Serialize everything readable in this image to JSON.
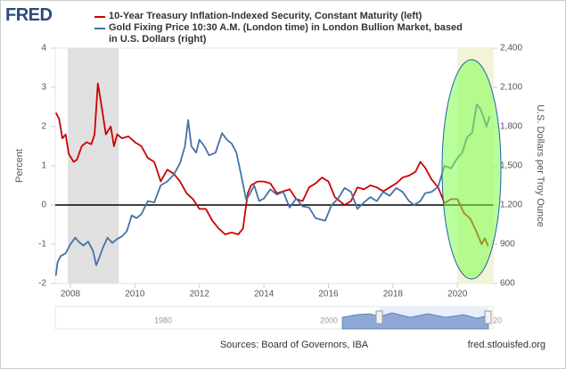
{
  "chart_data": {
    "type": "line",
    "logo": "FRED",
    "ylabel": "Percent",
    "y2label": "U.S. Dollars per Troy Ounce",
    "source": "Sources: Board of Governors, IBA",
    "url": "fred.stlouisfed.org",
    "xlim": [
      2007.53,
      2021.1
    ],
    "xticks": [
      2008,
      2010,
      2012,
      2014,
      2016,
      2018,
      2020
    ],
    "ylim": [
      -2,
      4
    ],
    "yticks": [
      -2,
      -1,
      0,
      1,
      2,
      3,
      4
    ],
    "y2lim": [
      600,
      2400
    ],
    "y2ticks": [
      {
        "value": 600,
        "label": "600"
      },
      {
        "value": 900,
        "label": "900"
      },
      {
        "value": 1200,
        "label": "1,200"
      },
      {
        "value": 1500,
        "label": "1,500"
      },
      {
        "value": 1800,
        "label": "1,800"
      },
      {
        "value": 2100,
        "label": "2,100"
      },
      {
        "value": 2400,
        "label": "2,400"
      }
    ],
    "recessions": [
      [
        2007.92,
        2009.5
      ],
      [
        2020.0,
        2021.1
      ]
    ],
    "navigator_labels": [
      "1980",
      "2000",
      "20"
    ],
    "series": [
      {
        "name": "10-Year Treasury Inflation-Indexed Security, Constant Maturity (left)",
        "color": "#cc0000",
        "x": [
          2007.55,
          2007.65,
          2007.75,
          2007.85,
          2007.95,
          2008.1,
          2008.2,
          2008.35,
          2008.5,
          2008.65,
          2008.75,
          2008.85,
          2008.95,
          2009.1,
          2009.25,
          2009.35,
          2009.45,
          2009.6,
          2009.8,
          2010.0,
          2010.2,
          2010.4,
          2010.6,
          2010.8,
          2011.0,
          2011.2,
          2011.4,
          2011.6,
          2011.8,
          2012.0,
          2012.2,
          2012.4,
          2012.6,
          2012.8,
          2013.0,
          2013.2,
          2013.35,
          2013.5,
          2013.6,
          2013.8,
          2014.0,
          2014.2,
          2014.4,
          2014.6,
          2014.8,
          2015.0,
          2015.2,
          2015.4,
          2015.6,
          2015.8,
          2016.0,
          2016.2,
          2016.5,
          2016.7,
          2016.9,
          2017.1,
          2017.3,
          2017.5,
          2017.7,
          2017.9,
          2018.1,
          2018.3,
          2018.5,
          2018.7,
          2018.85,
          2019.0,
          2019.2,
          2019.4,
          2019.6,
          2019.8,
          2020.0,
          2020.2,
          2020.4,
          2020.6,
          2020.75,
          2020.85,
          2020.95
        ],
        "values": [
          2.35,
          2.2,
          1.7,
          1.8,
          1.3,
          1.1,
          1.15,
          1.5,
          1.6,
          1.55,
          1.8,
          3.1,
          2.6,
          1.8,
          2.0,
          1.5,
          1.8,
          1.7,
          1.75,
          1.6,
          1.5,
          1.2,
          1.1,
          0.6,
          0.9,
          0.8,
          0.6,
          0.3,
          0.15,
          -0.1,
          -0.1,
          -0.4,
          -0.6,
          -0.75,
          -0.7,
          -0.75,
          -0.6,
          0.3,
          0.5,
          0.6,
          0.6,
          0.55,
          0.3,
          0.35,
          0.4,
          0.15,
          0.1,
          0.45,
          0.55,
          0.7,
          0.6,
          0.2,
          0.0,
          0.1,
          0.45,
          0.4,
          0.5,
          0.45,
          0.35,
          0.45,
          0.55,
          0.7,
          0.75,
          0.85,
          1.1,
          0.95,
          0.65,
          0.45,
          0.05,
          0.15,
          0.15,
          -0.2,
          -0.35,
          -0.7,
          -1.0,
          -0.85,
          -1.05
        ]
      },
      {
        "name": "Gold Fixing Price 10:30 A.M. (London time) in London Bullion Market, based in U.S. Dollars (right)",
        "color": "#4572a7",
        "axis": "y2",
        "x": [
          2007.55,
          2007.6,
          2007.7,
          2007.85,
          2008.0,
          2008.15,
          2008.25,
          2008.4,
          2008.55,
          2008.7,
          2008.8,
          2008.9,
          2009.0,
          2009.15,
          2009.3,
          2009.45,
          2009.6,
          2009.75,
          2009.9,
          2010.05,
          2010.2,
          2010.4,
          2010.6,
          2010.8,
          2011.0,
          2011.2,
          2011.4,
          2011.55,
          2011.65,
          2011.75,
          2011.9,
          2012.0,
          2012.15,
          2012.3,
          2012.5,
          2012.7,
          2012.85,
          2013.0,
          2013.15,
          2013.3,
          2013.45,
          2013.55,
          2013.7,
          2013.85,
          2014.0,
          2014.2,
          2014.4,
          2014.6,
          2014.8,
          2015.0,
          2015.2,
          2015.4,
          2015.6,
          2015.9,
          2016.1,
          2016.3,
          2016.5,
          2016.7,
          2016.9,
          2017.1,
          2017.3,
          2017.5,
          2017.7,
          2017.9,
          2018.1,
          2018.3,
          2018.5,
          2018.65,
          2018.85,
          2019.0,
          2019.2,
          2019.4,
          2019.6,
          2019.8,
          2020.0,
          2020.15,
          2020.3,
          2020.45,
          2020.6,
          2020.7,
          2020.8,
          2020.9,
          2021.0
        ],
        "values": [
          660,
          760,
          810,
          830,
          900,
          950,
          920,
          890,
          920,
          850,
          740,
          800,
          870,
          950,
          910,
          940,
          960,
          1000,
          1120,
          1100,
          1130,
          1230,
          1220,
          1350,
          1380,
          1430,
          1520,
          1650,
          1850,
          1650,
          1600,
          1700,
          1650,
          1580,
          1600,
          1750,
          1700,
          1670,
          1600,
          1420,
          1240,
          1280,
          1350,
          1230,
          1250,
          1320,
          1280,
          1300,
          1180,
          1250,
          1190,
          1180,
          1100,
          1080,
          1200,
          1250,
          1330,
          1300,
          1170,
          1220,
          1260,
          1230,
          1300,
          1270,
          1330,
          1300,
          1230,
          1200,
          1230,
          1290,
          1300,
          1340,
          1500,
          1480,
          1560,
          1600,
          1720,
          1750,
          1970,
          1940,
          1880,
          1800,
          1880
        ]
      }
    ]
  }
}
